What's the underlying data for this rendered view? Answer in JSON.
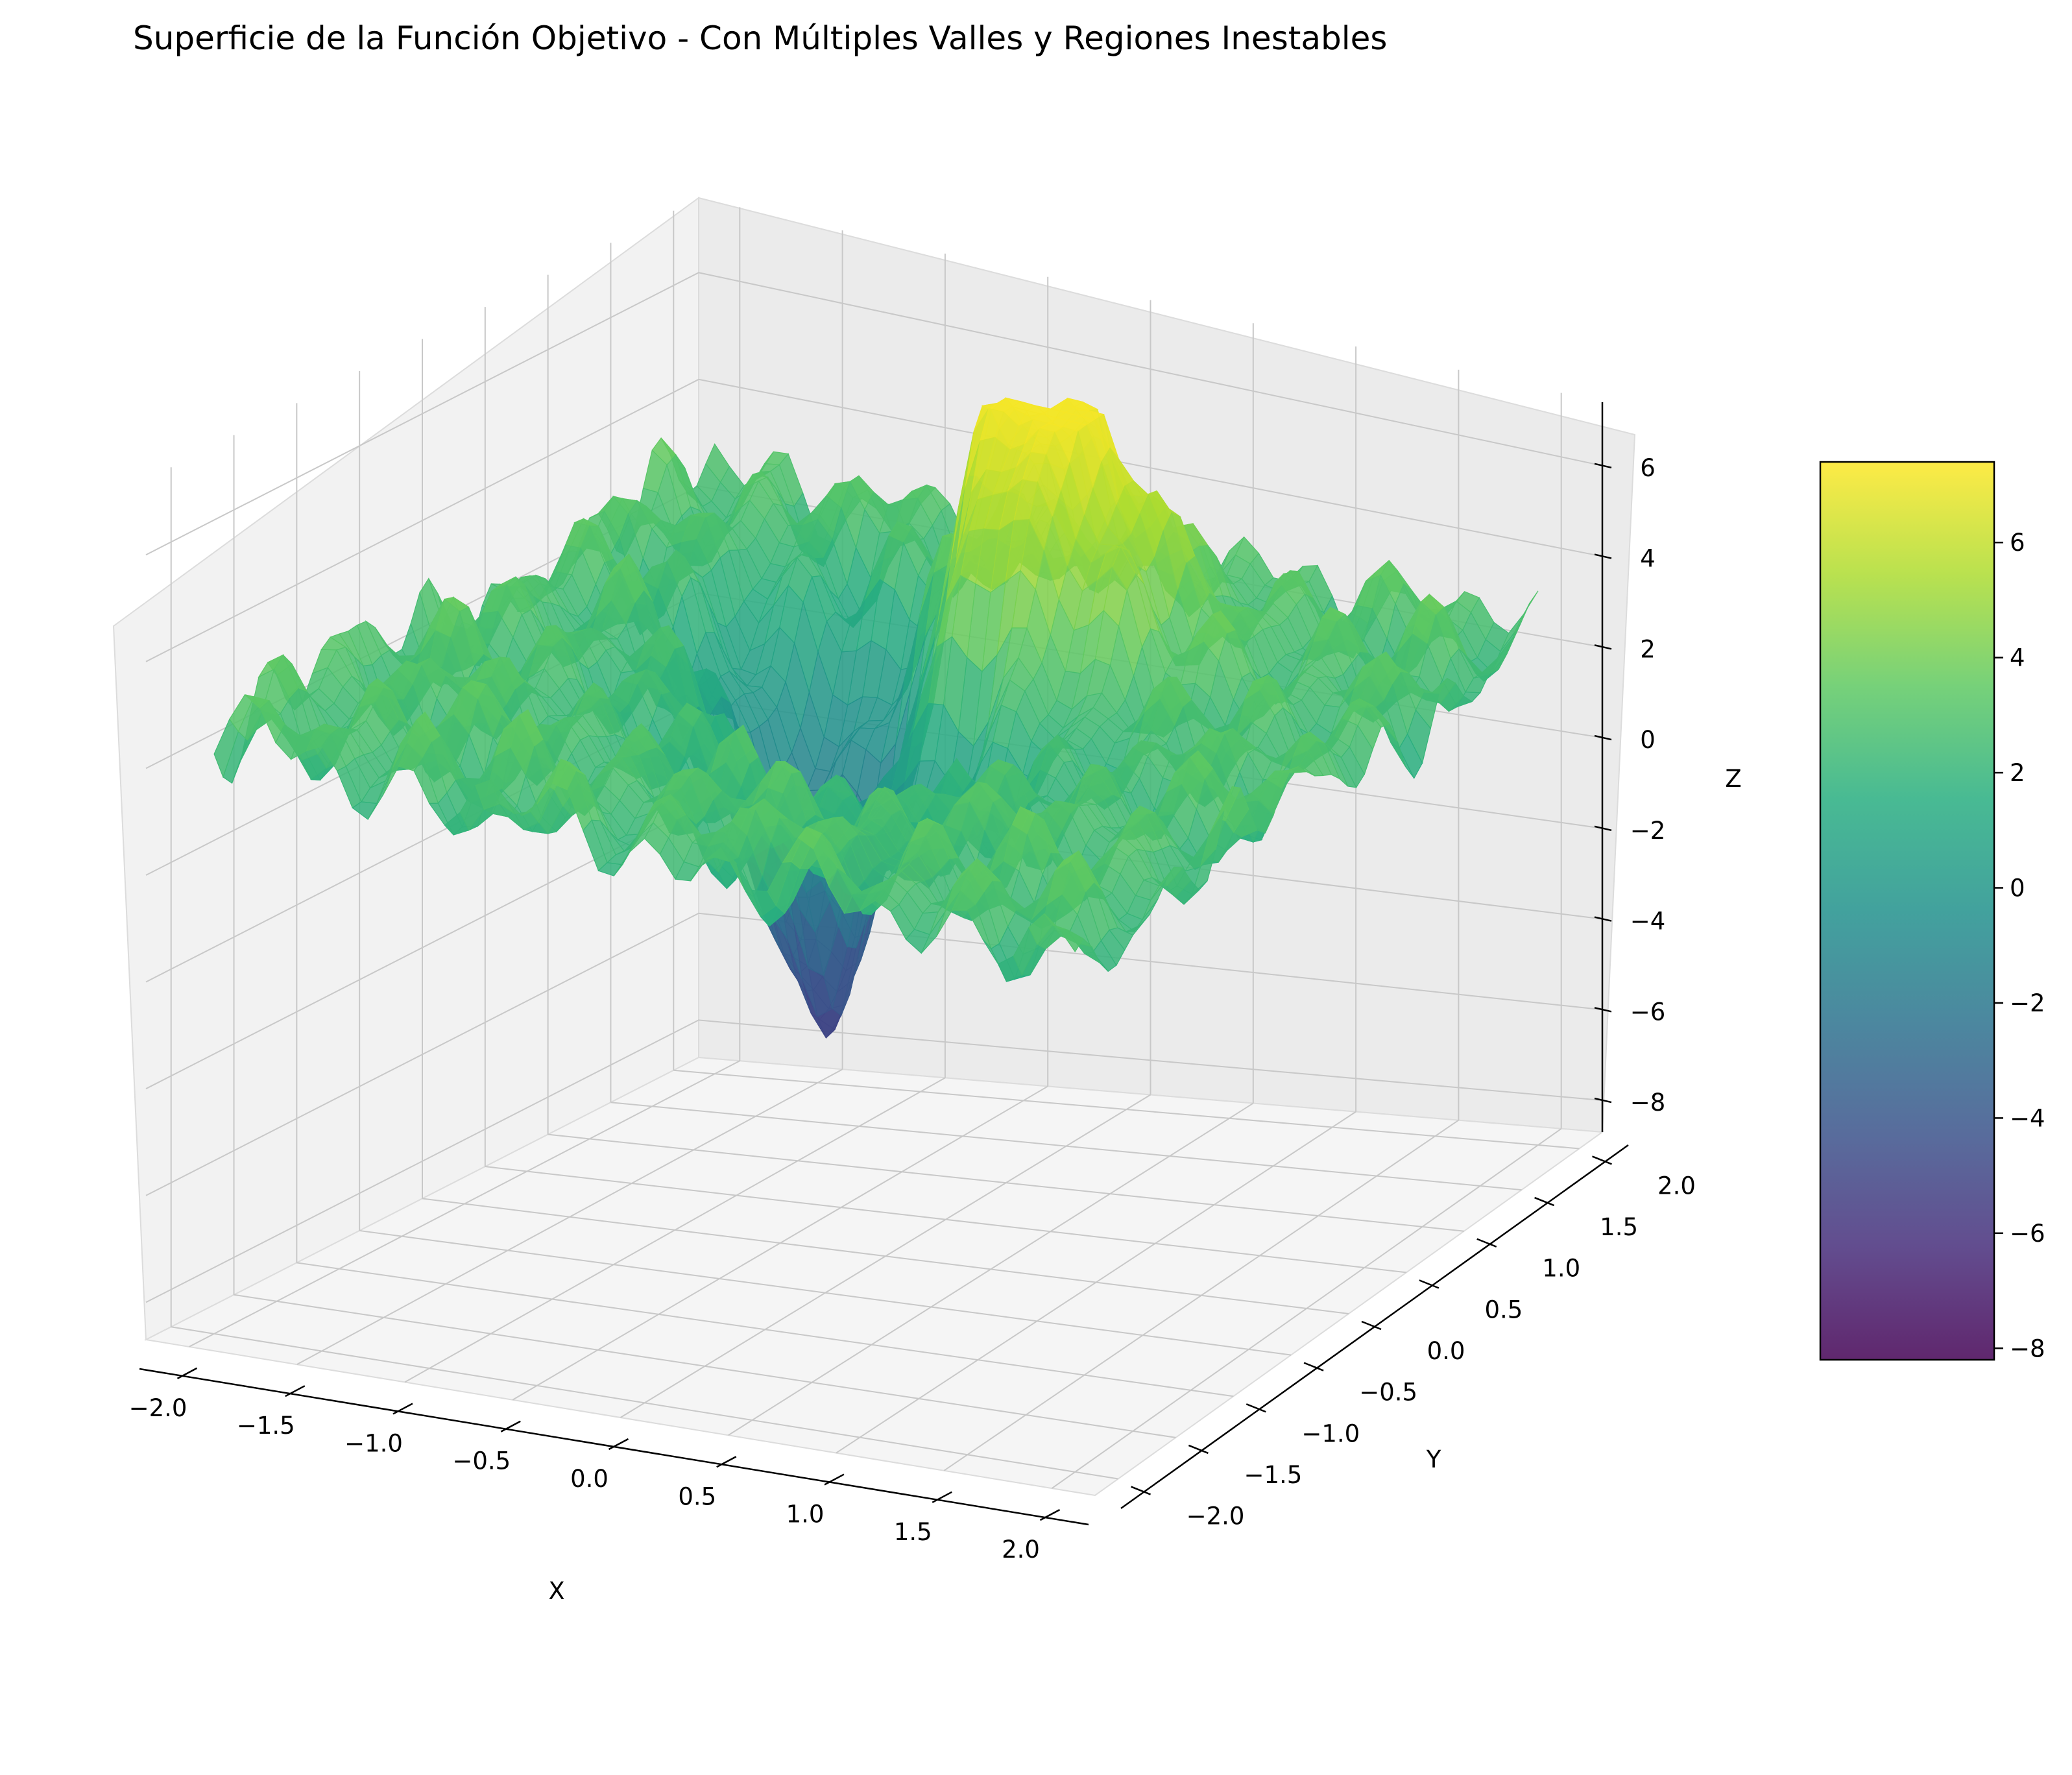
{
  "chart_data": {
    "type": "surface",
    "title": "Superficie de la Función Objetivo - Con Múltiples Valles y Regiones Inestables",
    "xlabel": "X",
    "ylabel": "Y",
    "zlabel": "Z",
    "xlim": [
      -2.2,
      2.2
    ],
    "ylim": [
      -2.2,
      2.2
    ],
    "zlim": [
      -8.7,
      7.4
    ],
    "x_ticks": [
      "−2.0",
      "−1.5",
      "−1.0",
      "−0.5",
      "0.0",
      "0.5",
      "1.0",
      "1.5",
      "2.0"
    ],
    "y_ticks": [
      "−2.0",
      "−1.5",
      "−1.0",
      "−0.5",
      "0.0",
      "0.5",
      "1.0",
      "1.5",
      "2.0"
    ],
    "z_ticks": [
      "−8",
      "−6",
      "−4",
      "−2",
      "0",
      "2",
      "4",
      "6"
    ],
    "colormap": "viridis",
    "surface_alpha": 0.85,
    "colorbar": {
      "range": [
        -8.2,
        7.4
      ],
      "ticks": [
        "−8",
        "−6",
        "−4",
        "−2",
        "0",
        "2",
        "4",
        "6"
      ]
    },
    "features": {
      "global_max": {
        "x": 0.2,
        "y": 0.9,
        "z": 6.9
      },
      "global_min": {
        "x": -0.6,
        "y": 0.6,
        "z": -8.2
      },
      "secondary_valley": {
        "x": -0.95,
        "y": 1.0,
        "z": -4.5
      }
    },
    "grid": true
  }
}
